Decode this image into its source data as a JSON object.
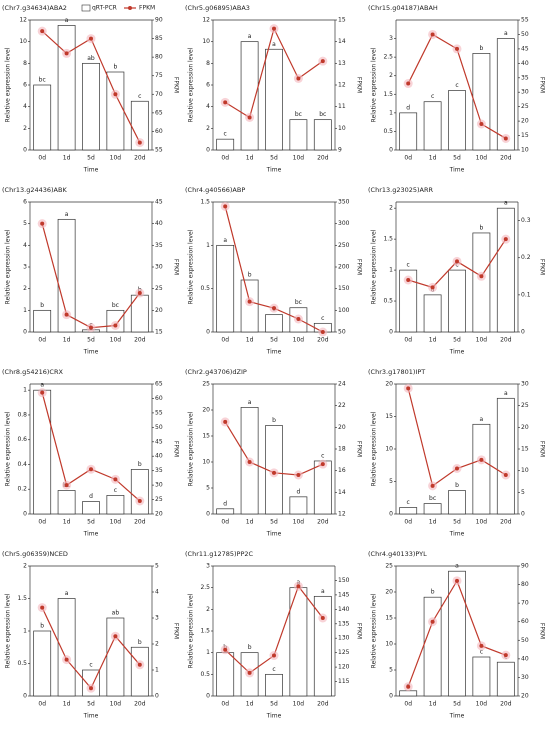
{
  "chart_data": [
    {
      "type": "combo",
      "title": "(Chr7.g34634)ABA2",
      "legend": "top",
      "categories": [
        "0d",
        "1d",
        "5d",
        "10d",
        "20d"
      ],
      "series": [
        {
          "name": "qRT-PCR",
          "color": "#ffffff",
          "values": [
            6,
            11.5,
            8,
            7.2,
            4.5
          ]
        },
        {
          "name": "FPKM",
          "color": "#c0392b",
          "values": [
            87,
            81,
            85,
            70,
            57
          ],
          "axis": "y2"
        }
      ],
      "annotations": [
        "bc",
        "a",
        "ab",
        "b",
        "c"
      ],
      "ylim": [
        0,
        12
      ],
      "yticks": [
        0,
        2,
        4,
        6,
        8,
        10,
        12
      ],
      "y2lim": [
        55,
        90
      ],
      "y2ticks": [
        55,
        60,
        65,
        70,
        75,
        80,
        85,
        90
      ],
      "xlabel": "Time",
      "ylabel": "Relative expression level",
      "y2label": "FPKM"
    },
    {
      "type": "combo",
      "title": "(Chr5.g06895)ABA3",
      "categories": [
        "0d",
        "1d",
        "5d",
        "10d",
        "20d"
      ],
      "series": [
        {
          "color": "#ffffff",
          "values": [
            1,
            10,
            9.3,
            2.8,
            2.8
          ]
        },
        {
          "color": "#c0392b",
          "values": [
            11.2,
            10.5,
            14.6,
            12.3,
            13.1
          ],
          "axis": "y2"
        }
      ],
      "annotations": [
        "c",
        "a",
        "a",
        "bc",
        "bc"
      ],
      "ylim": [
        0,
        12
      ],
      "yticks": [
        0,
        2,
        4,
        6,
        8,
        10,
        12
      ],
      "y2lim": [
        9,
        15
      ],
      "y2ticks": [
        9,
        10,
        11,
        12,
        13,
        14,
        15
      ],
      "xlabel": "Time",
      "ylabel": "Relative expression level",
      "y2label": "FPKM"
    },
    {
      "type": "combo",
      "title": "(Chr15.g04187)ABAH",
      "categories": [
        "0d",
        "1d",
        "5d",
        "10d",
        "20d"
      ],
      "series": [
        {
          "color": "#ffffff",
          "values": [
            1,
            1.3,
            1.6,
            2.6,
            3.0
          ]
        },
        {
          "color": "#c0392b",
          "values": [
            33,
            50,
            45,
            19,
            14
          ],
          "axis": "y2"
        }
      ],
      "annotations": [
        "d",
        "c",
        "c",
        "b",
        "a"
      ],
      "ylim": [
        0,
        3.5
      ],
      "yticks": [
        0,
        0.5,
        1,
        1.5,
        2,
        2.5,
        3
      ],
      "y2lim": [
        10,
        55
      ],
      "y2ticks": [
        10,
        15,
        20,
        25,
        30,
        35,
        40,
        45,
        50,
        55
      ],
      "xlabel": "Time",
      "ylabel": "Relative expression level",
      "y2label": "FPKM"
    },
    {
      "type": "combo",
      "title": "(Chr13.g24436)ABK",
      "categories": [
        "0d",
        "1d",
        "5d",
        "10d",
        "20d"
      ],
      "series": [
        {
          "color": "#ffffff",
          "values": [
            1.0,
            5.2,
            0.1,
            1.0,
            1.7
          ]
        },
        {
          "color": "#c0392b",
          "values": [
            40,
            19,
            16,
            16.5,
            24
          ],
          "axis": "y2"
        }
      ],
      "annotations": [
        "b",
        "a",
        "c",
        "bc",
        "b"
      ],
      "ylim": [
        0,
        6
      ],
      "yticks": [
        0,
        1,
        2,
        3,
        4,
        5,
        6
      ],
      "y2lim": [
        15,
        45
      ],
      "y2ticks": [
        15,
        20,
        25,
        30,
        35,
        40,
        45
      ],
      "xlabel": "Time",
      "ylabel": "Relative expression level",
      "y2label": "FPKM"
    },
    {
      "type": "combo",
      "title": "(Chr4.g40566)ABP",
      "categories": [
        "0d",
        "1d",
        "5d",
        "10d",
        "20d"
      ],
      "series": [
        {
          "color": "#ffffff",
          "values": [
            1.0,
            0.6,
            0.2,
            0.28,
            0.1
          ]
        },
        {
          "color": "#c0392b",
          "values": [
            340,
            120,
            105,
            80,
            50
          ],
          "axis": "y2"
        }
      ],
      "annotations": [
        "a",
        "b",
        "c",
        "bc",
        "c"
      ],
      "ylim": [
        0,
        1.5
      ],
      "yticks": [
        0,
        0.5,
        1,
        1.5
      ],
      "y2lim": [
        50,
        350
      ],
      "y2ticks": [
        50,
        100,
        150,
        200,
        250,
        300,
        350
      ],
      "xlabel": "Time",
      "ylabel": "Relative expression level",
      "y2label": "FPKM"
    },
    {
      "type": "combo",
      "title": "(Chr13.g23025)ARR",
      "categories": [
        "0d",
        "1d",
        "5d",
        "10d",
        "20d"
      ],
      "series": [
        {
          "color": "#ffffff",
          "values": [
            1.0,
            0.6,
            1.0,
            1.6,
            2.0
          ]
        },
        {
          "color": "#c0392b",
          "values": [
            0.14,
            0.12,
            0.19,
            0.15,
            0.25
          ],
          "axis": "y2"
        }
      ],
      "annotations": [
        "c",
        "d",
        "c",
        "b",
        "a"
      ],
      "ylim": [
        0,
        2.1
      ],
      "yticks": [
        0,
        0.5,
        1,
        1.5,
        2
      ],
      "y2lim": [
        0,
        0.35
      ],
      "y2ticks": [
        0,
        0.1,
        0.2,
        0.3
      ],
      "xlabel": "Time",
      "ylabel": "Relative expression level",
      "y2label": "FPKM"
    },
    {
      "type": "combo",
      "title": "(Chr8.g54216)CRX",
      "categories": [
        "0d",
        "1d",
        "5d",
        "10d",
        "20d"
      ],
      "series": [
        {
          "color": "#ffffff",
          "values": [
            1.0,
            0.19,
            0.1,
            0.15,
            0.36
          ]
        },
        {
          "color": "#c0392b",
          "values": [
            62,
            30,
            35.5,
            32,
            24.5
          ],
          "axis": "y2"
        }
      ],
      "annotations": [
        "a",
        "bc",
        "d",
        "c",
        "b"
      ],
      "ylim": [
        0,
        1.05
      ],
      "yticks": [
        0,
        0.2,
        0.4,
        0.6,
        0.8,
        1
      ],
      "y2lim": [
        20,
        65
      ],
      "y2ticks": [
        20,
        25,
        30,
        35,
        40,
        45,
        50,
        55,
        60,
        65
      ],
      "xlabel": "Time",
      "ylabel": "Relative expression level",
      "y2label": "FPKM"
    },
    {
      "type": "combo",
      "title": "(Chr2.g43706)dZIP",
      "categories": [
        "0d",
        "1d",
        "5d",
        "10d",
        "20d"
      ],
      "series": [
        {
          "color": "#ffffff",
          "values": [
            1,
            20.5,
            17,
            3.3,
            10.2
          ]
        },
        {
          "color": "#c0392b",
          "values": [
            20.5,
            16.8,
            15.8,
            15.6,
            16.6
          ],
          "axis": "y2"
        }
      ],
      "annotations": [
        "d",
        "a",
        "b",
        "d",
        "c"
      ],
      "ylim": [
        0,
        25
      ],
      "yticks": [
        0,
        5,
        10,
        15,
        20,
        25
      ],
      "y2lim": [
        12,
        24
      ],
      "y2ticks": [
        12,
        14,
        16,
        18,
        20,
        22,
        24
      ],
      "xlabel": "Time",
      "ylabel": "Relative expression level",
      "y2label": "FPKM"
    },
    {
      "type": "combo",
      "title": "(Chr3.g17801)IPT",
      "categories": [
        "0d",
        "1d",
        "5d",
        "10d",
        "20d"
      ],
      "series": [
        {
          "color": "#ffffff",
          "values": [
            1,
            1.6,
            3.6,
            13.8,
            17.8
          ]
        },
        {
          "color": "#c0392b",
          "values": [
            29,
            6.5,
            10.5,
            12.5,
            9
          ],
          "axis": "y2"
        }
      ],
      "annotations": [
        "c",
        "bc",
        "b",
        "a",
        "a"
      ],
      "ylim": [
        0,
        20
      ],
      "yticks": [
        0,
        5,
        10,
        15,
        20
      ],
      "y2lim": [
        0,
        30
      ],
      "y2ticks": [
        0,
        5,
        10,
        15,
        20,
        25,
        30
      ],
      "xlabel": "Time",
      "ylabel": "Relative expression level",
      "y2label": "FPKM"
    },
    {
      "type": "combo",
      "title": "(Chr5.g06359)NCED",
      "categories": [
        "0d",
        "1d",
        "5d",
        "10d",
        "20d"
      ],
      "series": [
        {
          "color": "#ffffff",
          "values": [
            1.0,
            1.5,
            0.4,
            1.2,
            0.75
          ]
        },
        {
          "color": "#c0392b",
          "values": [
            3.4,
            1.4,
            0.3,
            2.3,
            1.2
          ],
          "axis": "y2"
        }
      ],
      "annotations": [
        "b",
        "a",
        "c",
        "ab",
        "b"
      ],
      "ylim": [
        0,
        2
      ],
      "yticks": [
        0,
        0.5,
        1,
        1.5,
        2
      ],
      "y2lim": [
        0,
        5
      ],
      "y2ticks": [
        0,
        1,
        2,
        3,
        4,
        5
      ],
      "xlabel": "Time",
      "ylabel": "Relative expression level",
      "y2label": "FPKM"
    },
    {
      "type": "combo",
      "title": "(Chr11.g12785)PP2C",
      "categories": [
        "0d",
        "1d",
        "5d",
        "10d",
        "20d"
      ],
      "series": [
        {
          "color": "#ffffff",
          "values": [
            1.0,
            1.0,
            0.5,
            2.5,
            2.3
          ]
        },
        {
          "color": "#c0392b",
          "values": [
            126,
            118,
            124,
            148,
            137
          ],
          "axis": "y2"
        }
      ],
      "annotations": [
        "b",
        "b",
        "c",
        "a",
        "a"
      ],
      "ylim": [
        0,
        3
      ],
      "yticks": [
        0,
        0.5,
        1,
        1.5,
        2,
        2.5,
        3
      ],
      "y2lim": [
        110,
        155
      ],
      "y2ticks": [
        115,
        120,
        125,
        130,
        135,
        140,
        145,
        150
      ],
      "xlabel": "Time",
      "ylabel": "Relative expression level",
      "y2label": "FPKM"
    },
    {
      "type": "combo",
      "title": "(Chr4.g40133)PYL",
      "categories": [
        "0d",
        "1d",
        "5d",
        "10d",
        "20d"
      ],
      "series": [
        {
          "color": "#ffffff",
          "values": [
            1,
            19,
            24,
            7.5,
            6.5
          ]
        },
        {
          "color": "#c0392b",
          "values": [
            25,
            60,
            82,
            47,
            42
          ],
          "axis": "y2"
        }
      ],
      "annotations": [
        "d",
        "b",
        "a",
        "c",
        "c"
      ],
      "ylim": [
        0,
        25
      ],
      "yticks": [
        0,
        5,
        10,
        15,
        20,
        25
      ],
      "y2lim": [
        20,
        90
      ],
      "y2ticks": [
        20,
        30,
        40,
        50,
        60,
        70,
        80,
        90
      ],
      "xlabel": "Time",
      "ylabel": "Relative expression level",
      "y2label": "FPKM"
    }
  ]
}
